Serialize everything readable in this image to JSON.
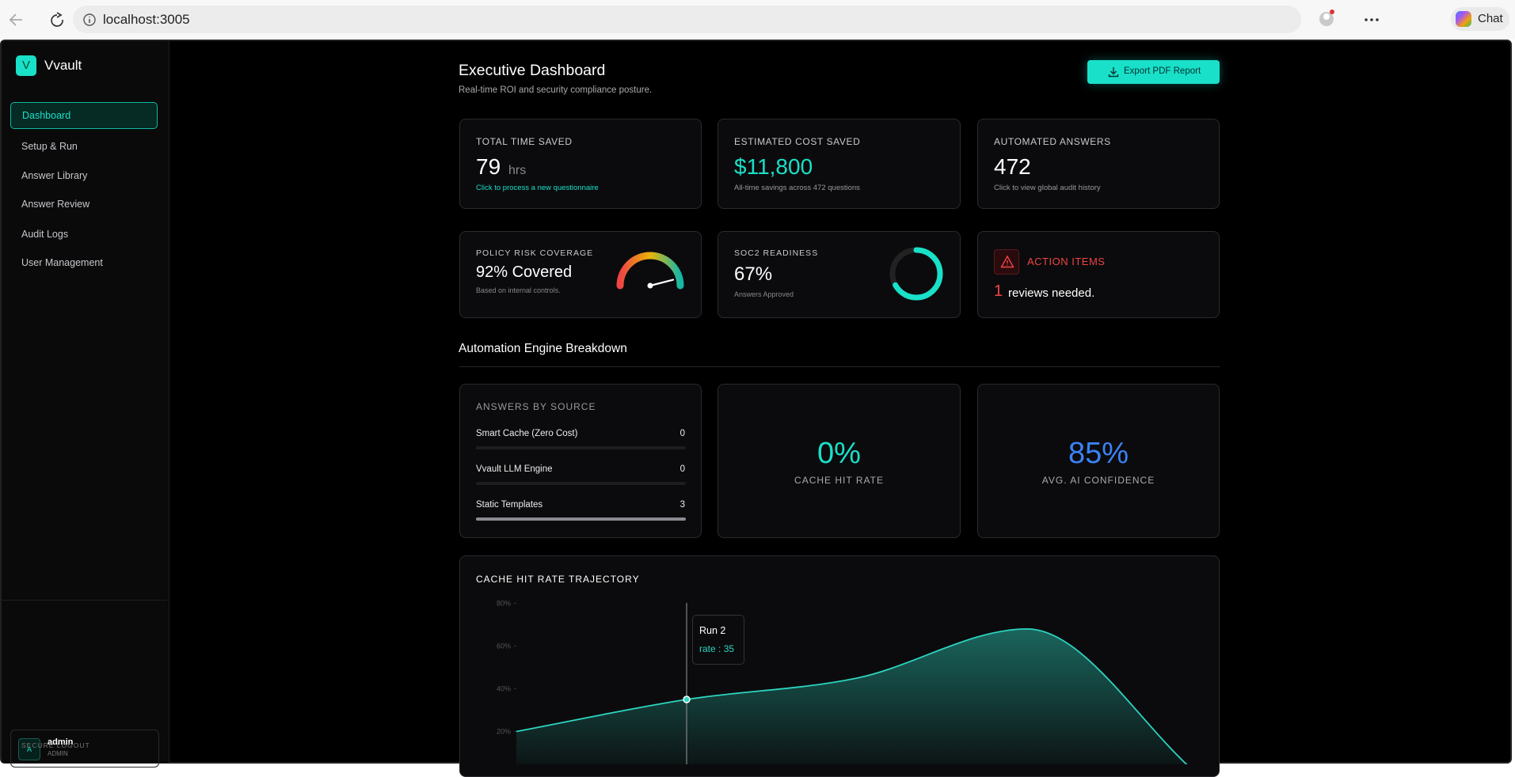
{
  "browser": {
    "url": "localhost:3005",
    "chat": "Chat"
  },
  "sidebar": {
    "logo_letter": "V",
    "brand": "Vvault",
    "nav": [
      "Dashboard",
      "Setup & Run",
      "Answer Library",
      "Answer Review",
      "Audit Logs",
      "User Management"
    ],
    "user": {
      "avatar": "A",
      "name": "admin",
      "role": "ADMIN"
    },
    "logout": "SECURE LOGOUT"
  },
  "header": {
    "title": "Executive Dashboard",
    "subtitle": "Real-time ROI and security compliance posture.",
    "export_button": "Export PDF Report"
  },
  "stats": [
    {
      "label": "TOTAL TIME SAVED",
      "value": "79",
      "unit": "hrs",
      "note": "Click to process a new questionnaire"
    },
    {
      "label": "ESTIMATED COST SAVED",
      "value": "$11,800",
      "note": "All-time savings across 472 questions"
    },
    {
      "label": "AUTOMATED ANSWERS",
      "value": "472",
      "note": "Click to view global audit history"
    }
  ],
  "policy": {
    "label": "POLICY RISK COVERAGE",
    "text": "92% Covered",
    "note": "Based on internal controls.",
    "value": 92
  },
  "soc2": {
    "label": "SOC2 READINESS",
    "text": "67%",
    "note": "Answers Approved",
    "value": 67
  },
  "action": {
    "label": "ACTION ITEMS",
    "count": 1,
    "text": "reviews needed."
  },
  "section_title": "Automation Engine Breakdown",
  "sources": {
    "label": "ANSWERS BY SOURCE",
    "items": [
      {
        "name": "Smart Cache (Zero Cost)",
        "value": 0
      },
      {
        "name": "Vvault LLM Engine",
        "value": 0
      },
      {
        "name": "Static Templates",
        "value": 3
      }
    ]
  },
  "cache_hit": {
    "text": "0%",
    "label": "CACHE HIT RATE"
  },
  "confidence": {
    "text": "85%",
    "label": "AVG. AI CONFIDENCE"
  },
  "chart_data": {
    "type": "area",
    "title": "CACHE HIT RATE TRAJECTORY",
    "categories": [
      null,
      "Run 2",
      null,
      null,
      null
    ],
    "series": [
      {
        "name": "rate",
        "color": "#2dd4bf",
        "values": [
          20,
          35,
          45,
          68,
          0
        ]
      }
    ],
    "ylim": [
      0,
      80
    ],
    "yticks": [
      {
        "value": 20,
        "label": "20%"
      },
      {
        "value": 40,
        "label": "40%"
      },
      {
        "value": 60,
        "label": "60%"
      },
      {
        "value": 80,
        "label": "80%"
      }
    ]
  }
}
